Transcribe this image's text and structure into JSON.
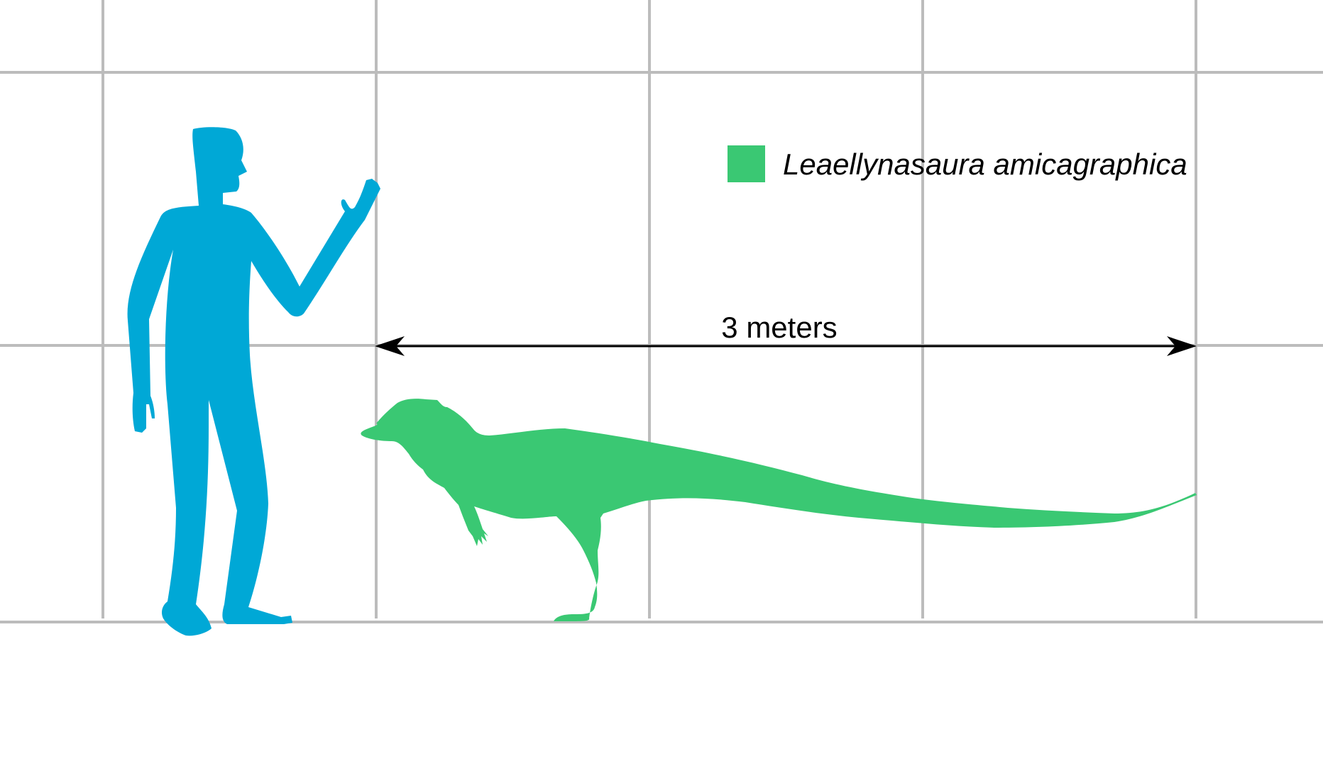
{
  "colors": {
    "grid": "#bcbcbc",
    "human": "#00a8d6",
    "dinosaur": "#3ac873",
    "arrow": "#000000",
    "background": "#ffffff"
  },
  "legend": {
    "species": "Leaellynasaura amicagraphica",
    "swatch_color": "#3ac873"
  },
  "measurement": {
    "label": "3 meters"
  },
  "silhouettes": {
    "human_icon": "human-silhouette",
    "dinosaur_icon": "dinosaur-silhouette"
  }
}
